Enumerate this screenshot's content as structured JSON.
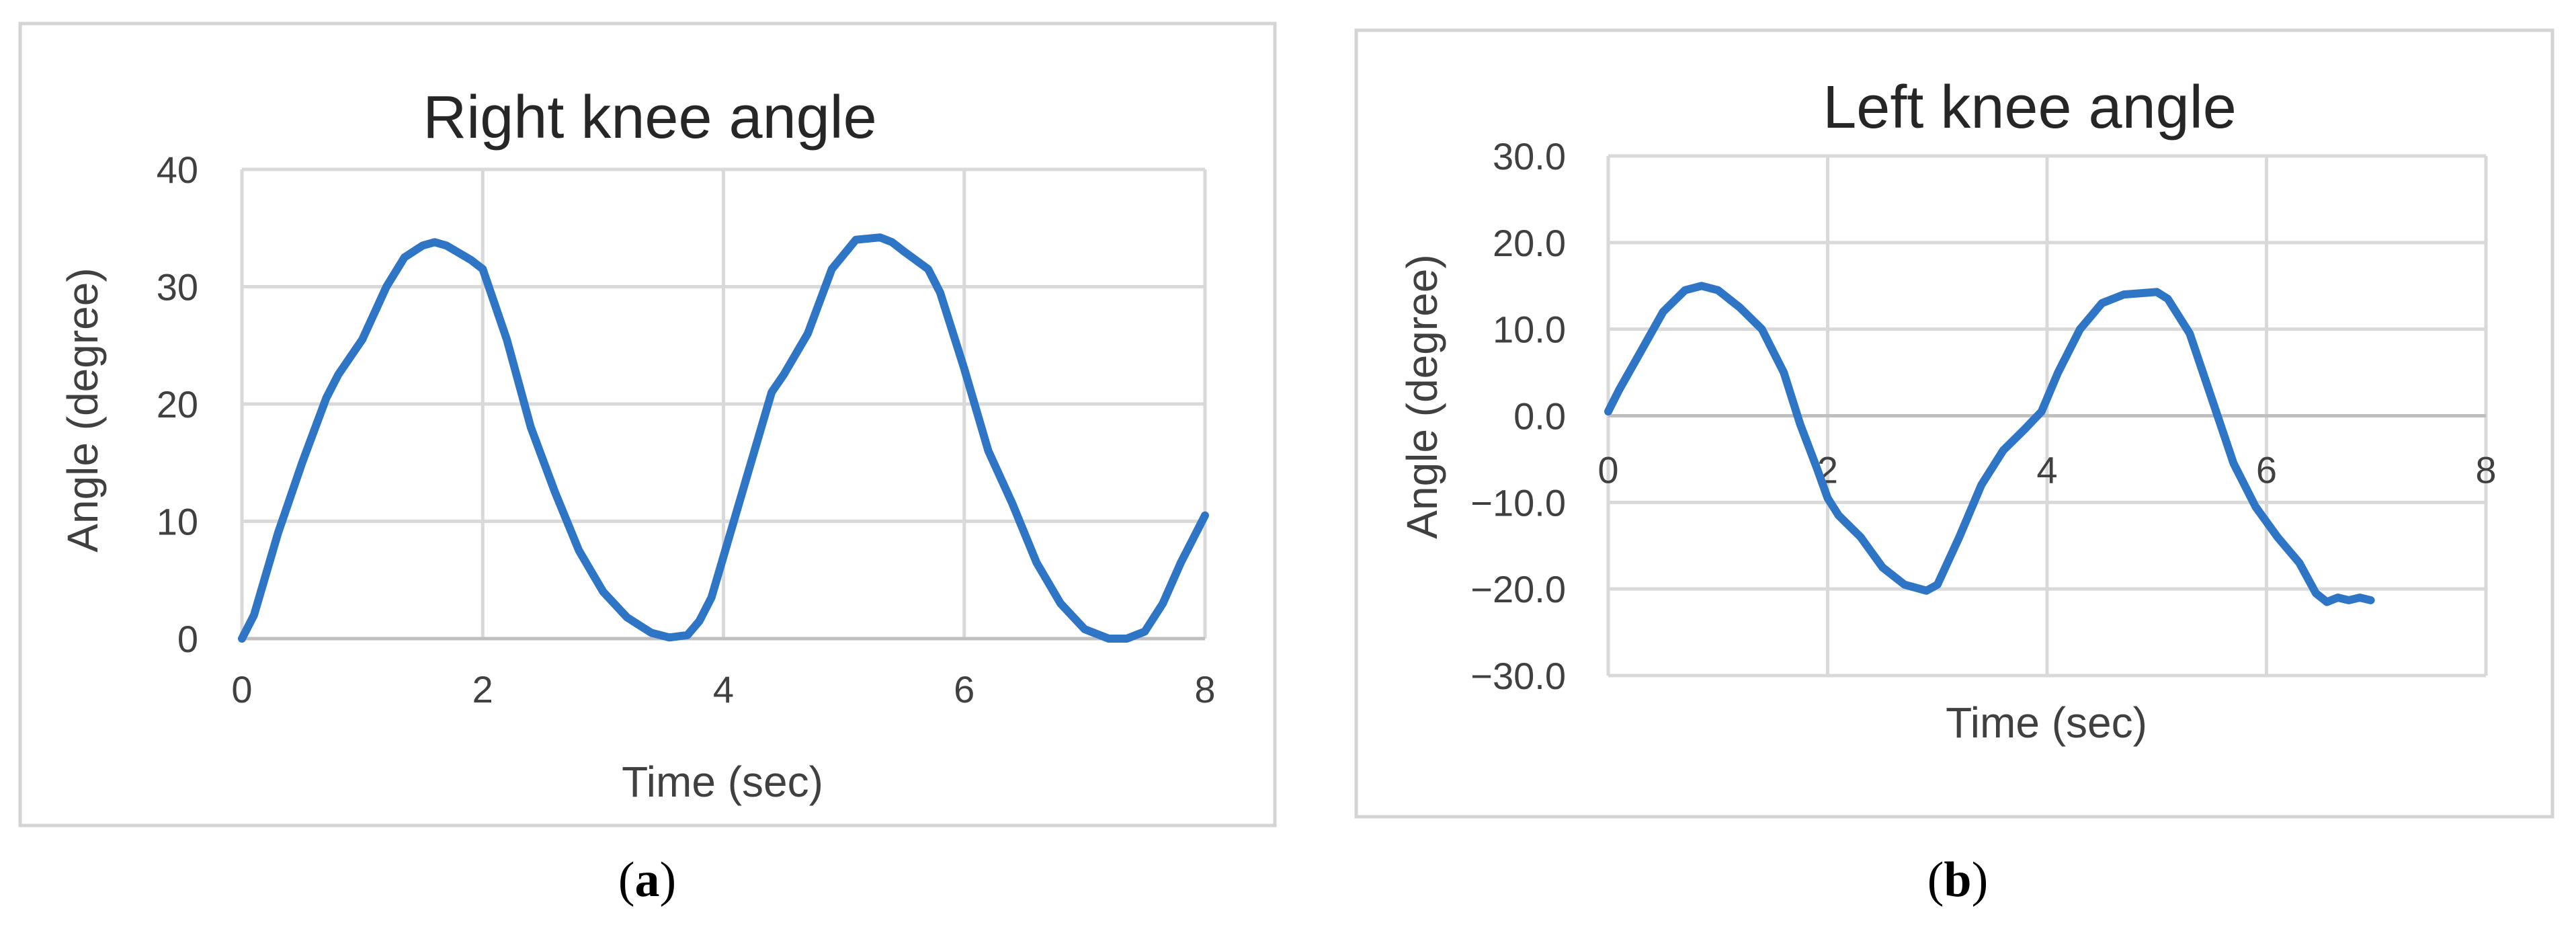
{
  "captions": {
    "a": "a",
    "b": "b"
  },
  "chart_data": [
    {
      "type": "line",
      "title": "Right knee angle",
      "xlabel": "Time (sec)",
      "ylabel": "Angle (degree)",
      "xlim": [
        0,
        8
      ],
      "ylim": [
        0,
        40
      ],
      "xticks": [
        "0",
        "2",
        "4",
        "6",
        "8"
      ],
      "yticks": [
        "0",
        "10",
        "20",
        "30",
        "40"
      ],
      "x_tick_values": [
        0,
        2,
        4,
        6,
        8
      ],
      "y_tick_values": [
        0,
        10,
        20,
        30,
        40
      ],
      "grid": true,
      "series": [
        {
          "color": "#2e75c6",
          "x": [
            0,
            0.1,
            0.3,
            0.5,
            0.7,
            0.8,
            1.0,
            1.2,
            1.35,
            1.5,
            1.6,
            1.7,
            1.9,
            2.0,
            2.2,
            2.4,
            2.6,
            2.8,
            3.0,
            3.2,
            3.4,
            3.55,
            3.7,
            3.8,
            3.9,
            4.0,
            4.2,
            4.4,
            4.5,
            4.7,
            4.9,
            5.1,
            5.3,
            5.4,
            5.5,
            5.7,
            5.8,
            6.0,
            6.2,
            6.4,
            6.6,
            6.8,
            7.0,
            7.2,
            7.35,
            7.5,
            7.65,
            7.8,
            8.0
          ],
          "y": [
            0,
            2,
            9,
            15,
            20.5,
            22.5,
            25.5,
            30,
            32.5,
            33.5,
            33.8,
            33.5,
            32.3,
            31.5,
            25.5,
            18,
            12.5,
            7.5,
            4,
            1.8,
            0.5,
            0.1,
            0.3,
            1.5,
            3.5,
            7,
            14,
            21,
            22.5,
            26,
            31.5,
            34,
            34.2,
            33.8,
            33,
            31.5,
            29.5,
            23,
            16,
            11.5,
            6.5,
            3,
            0.8,
            0,
            0,
            0.6,
            3,
            6.5,
            10.5
          ]
        }
      ]
    },
    {
      "type": "line",
      "title": "Left knee angle",
      "xlabel": "Time (sec)",
      "ylabel": "Angle (degree)",
      "xlim": [
        0,
        8
      ],
      "ylim": [
        -30,
        30
      ],
      "xticks": [
        "0",
        "2",
        "4",
        "6",
        "8"
      ],
      "yticks": [
        "−30.0",
        "−20.0",
        "−10.0",
        "0.0",
        "10.0",
        "20.0",
        "30.0"
      ],
      "x_tick_values": [
        0,
        2,
        4,
        6,
        8
      ],
      "y_tick_values": [
        -30,
        -20,
        -10,
        0,
        10,
        20,
        30
      ],
      "grid": true,
      "series": [
        {
          "color": "#2e75c6",
          "x": [
            0,
            0.1,
            0.3,
            0.5,
            0.7,
            0.85,
            1.0,
            1.2,
            1.4,
            1.6,
            1.75,
            1.9,
            2.0,
            2.1,
            2.3,
            2.5,
            2.7,
            2.9,
            3.0,
            3.2,
            3.4,
            3.6,
            3.8,
            3.95,
            4.1,
            4.3,
            4.5,
            4.7,
            4.9,
            5.0,
            5.1,
            5.3,
            5.5,
            5.7,
            5.9,
            6.1,
            6.3,
            6.45,
            6.55,
            6.65,
            6.75,
            6.85,
            6.95
          ],
          "y": [
            0.5,
            3,
            7.5,
            12,
            14.5,
            15,
            14.5,
            12.5,
            10,
            5,
            -1,
            -6,
            -9.5,
            -11.5,
            -14,
            -17.5,
            -19.5,
            -20.2,
            -19.5,
            -14,
            -8,
            -4,
            -1.5,
            0.5,
            5,
            10,
            13,
            14,
            14.2,
            14.3,
            13.5,
            9.5,
            2,
            -5.5,
            -10.5,
            -14,
            -17,
            -20.5,
            -21.5,
            -21,
            -21.3,
            -21,
            -21.3
          ]
        }
      ]
    }
  ]
}
